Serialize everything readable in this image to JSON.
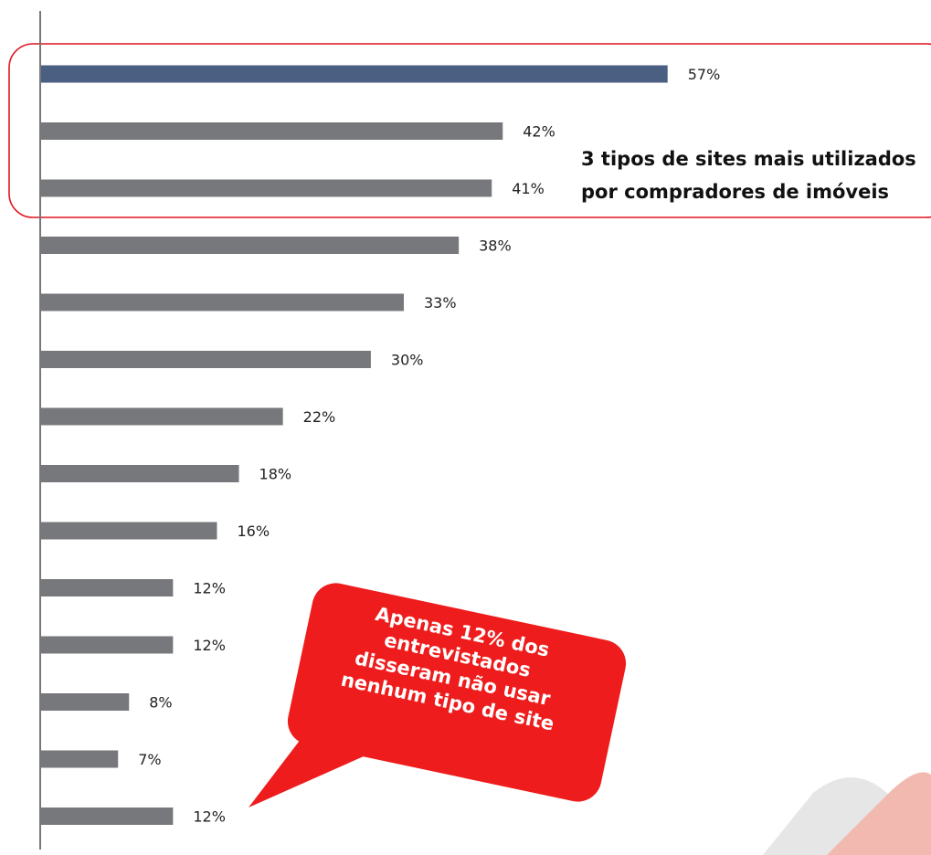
{
  "chart_data": {
    "type": "bar",
    "orientation": "horizontal",
    "values": [
      57,
      42,
      41,
      38,
      33,
      30,
      22,
      18,
      16,
      12,
      12,
      8,
      7,
      12
    ],
    "value_labels": [
      "57%",
      "42%",
      "41%",
      "38%",
      "33%",
      "30%",
      "22%",
      "18%",
      "16%",
      "12%",
      "12%",
      "8%",
      "7%",
      "12%"
    ],
    "highlight_index": 0,
    "xlim": [
      0,
      60
    ],
    "grid": false,
    "legend": "none"
  },
  "colors": {
    "highlight_bar": "#4a5f82",
    "bar": "#77787b",
    "callout_border": "#e0141e",
    "bubble": "#ee1c1c",
    "corner_gray": "#e6e6e7",
    "corner_pink": "#f2b9b1",
    "axis": "#777777"
  },
  "annotations": {
    "top3_box": {
      "line1": "3 tipos de sites mais utilizados",
      "line2": "por compradores de imóveis"
    },
    "bubble": {
      "line1": "Apenas 12% dos",
      "line2": "entrevistados",
      "line3": "disseram não usar",
      "line4": "nenhum tipo de site"
    }
  }
}
